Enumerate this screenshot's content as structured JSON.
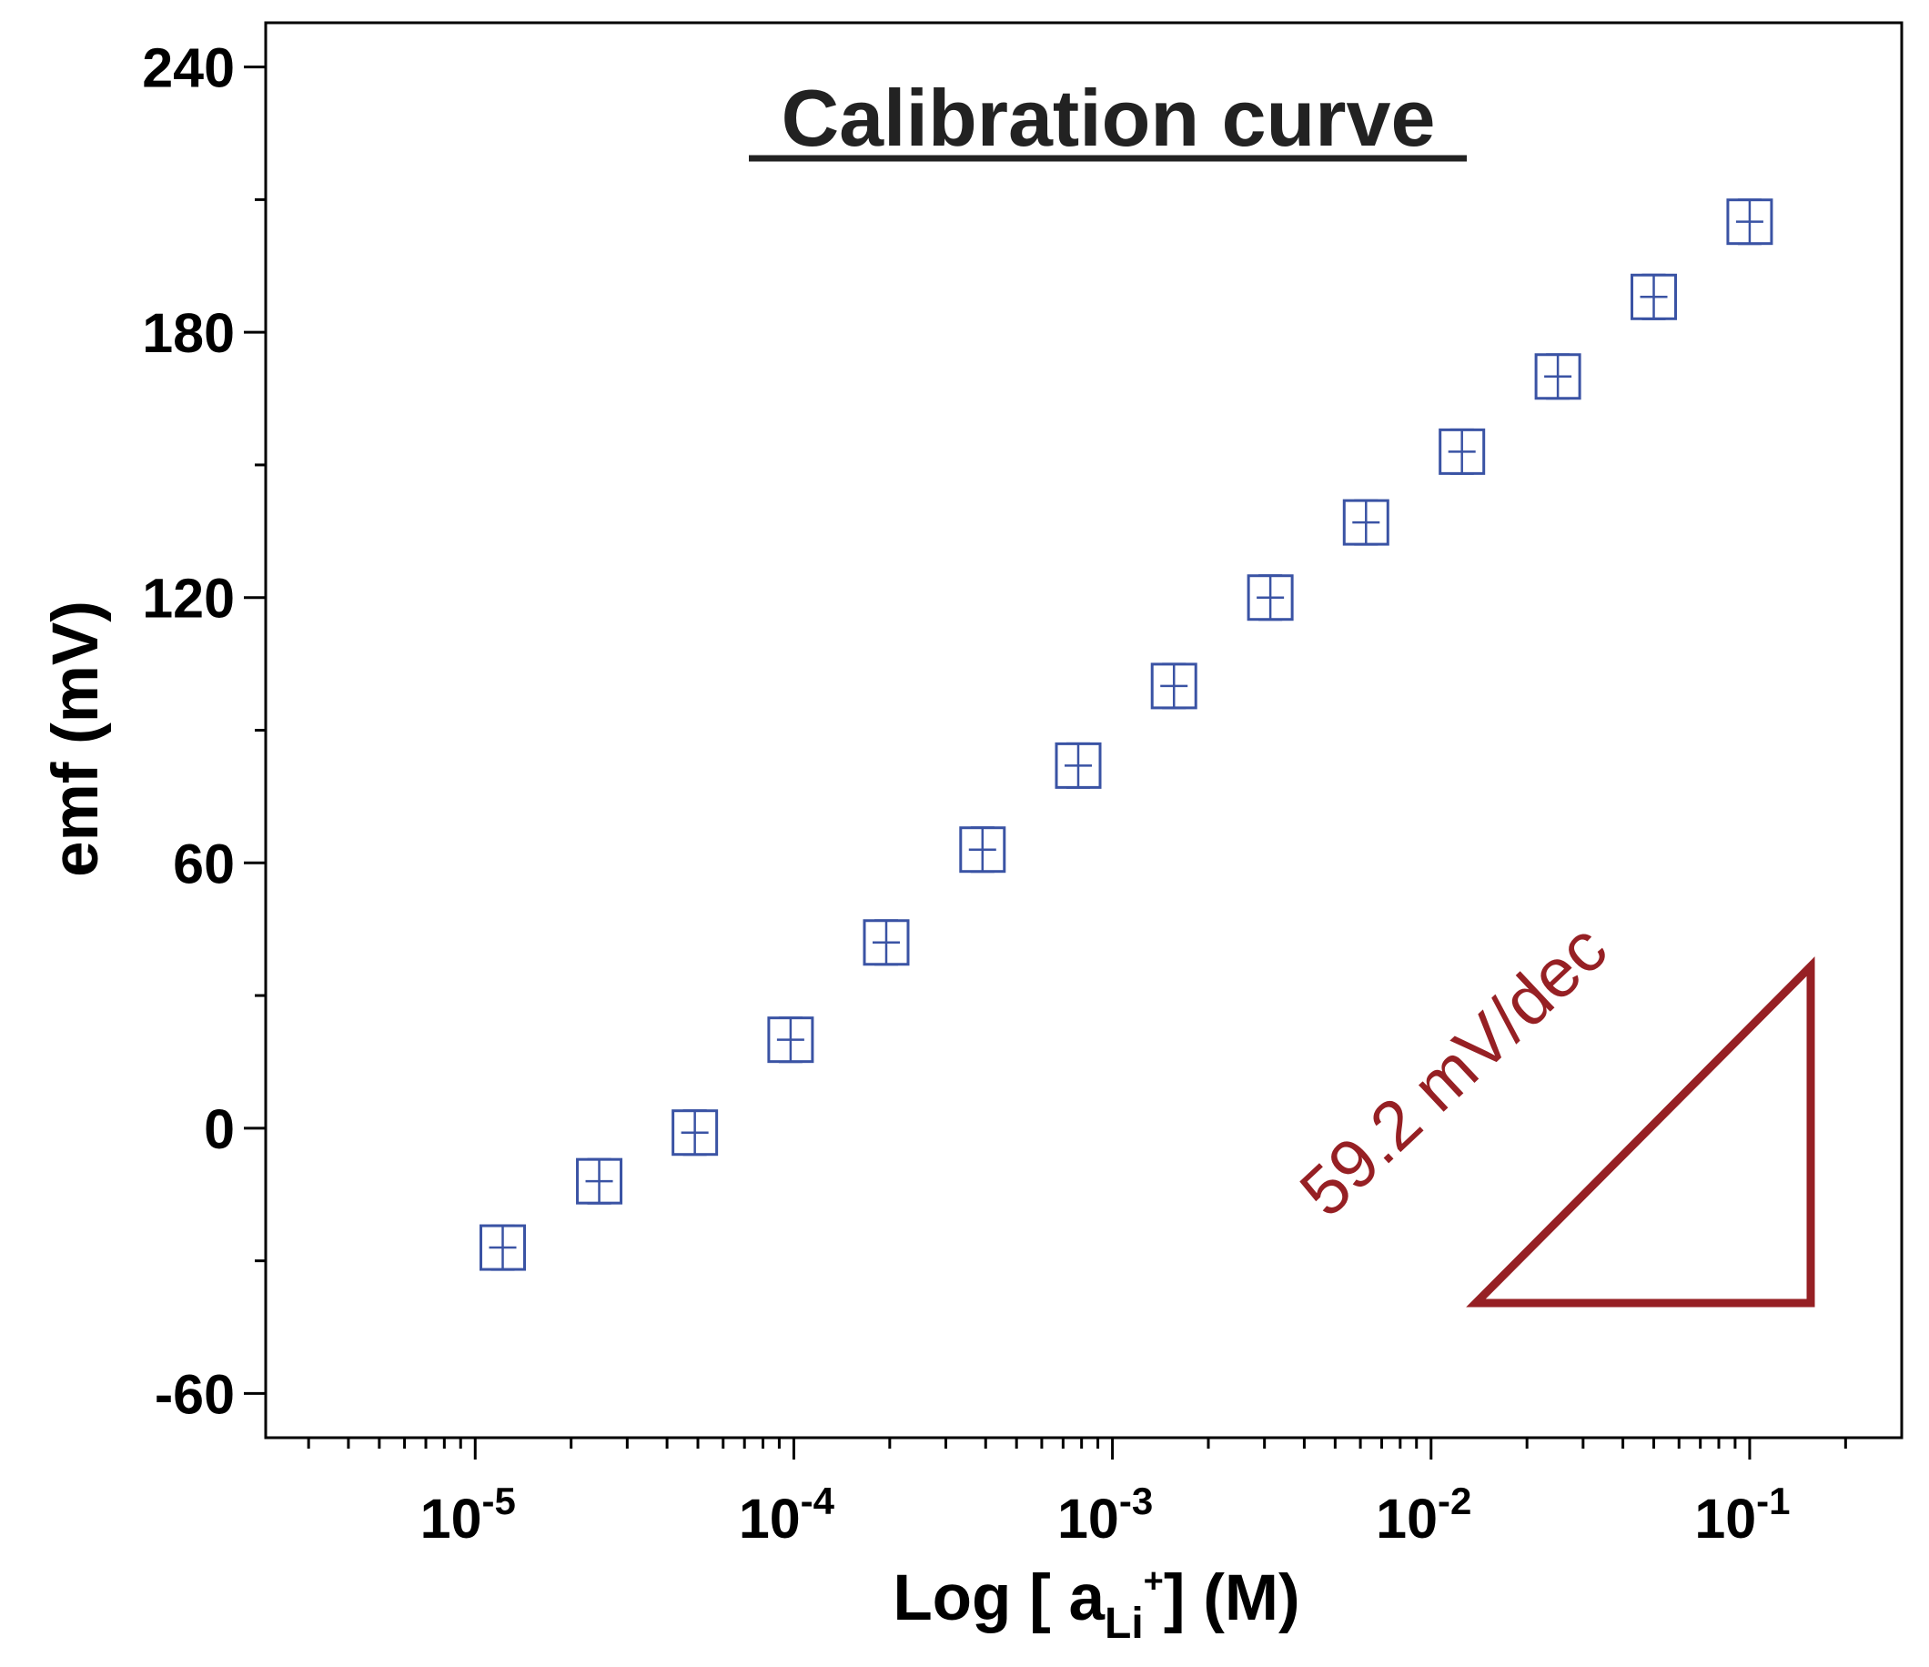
{
  "chart_data": {
    "type": "scatter",
    "title": "Calibration curve",
    "xlabel": {
      "prefix": "Log [ a",
      "sub": "Li",
      "sup": "+",
      "suffix": "] (M)"
    },
    "ylabel": "emf (mV)",
    "x_scale": "log",
    "xlim": [
      2.2e-06,
      0.3
    ],
    "ylim": [
      -70,
      250
    ],
    "grid": false,
    "legend": "none",
    "x_major_ticks": [
      {
        "value": 1e-05,
        "base": "10",
        "exp": "-5"
      },
      {
        "value": 0.0001,
        "base": "10",
        "exp": "-4"
      },
      {
        "value": 0.001,
        "base": "10",
        "exp": "-3"
      },
      {
        "value": 0.01,
        "base": "10",
        "exp": "-2"
      },
      {
        "value": 0.1,
        "base": "10",
        "exp": "-1"
      }
    ],
    "y_ticks": [
      "240",
      "180",
      "120",
      "60",
      "0",
      "-60"
    ],
    "series": [
      {
        "marker": "box-with-whiskers",
        "color": "#3a53a4",
        "points": [
          {
            "x": 1.22e-05,
            "y": -27,
            "err": 5
          },
          {
            "x": 2.45e-05,
            "y": -12,
            "err": 5
          },
          {
            "x": 4.89e-05,
            "y": -1,
            "err": 5
          },
          {
            "x": 9.77e-05,
            "y": 20,
            "err": 5
          },
          {
            "x": 0.000195,
            "y": 42,
            "err": 5
          },
          {
            "x": 0.000391,
            "y": 63,
            "err": 5
          },
          {
            "x": 0.000781,
            "y": 82,
            "err": 5
          },
          {
            "x": 0.00156,
            "y": 100,
            "err": 5
          },
          {
            "x": 0.00313,
            "y": 120,
            "err": 5
          },
          {
            "x": 0.00625,
            "y": 137,
            "err": 5
          },
          {
            "x": 0.0125,
            "y": 153,
            "err": 5
          },
          {
            "x": 0.025,
            "y": 170,
            "err": 5
          },
          {
            "x": 0.05,
            "y": 188,
            "err": 5
          },
          {
            "x": 0.1,
            "y": 205,
            "err": 5
          }
        ]
      }
    ],
    "annotation": {
      "text": "59.2 mV/dec",
      "color": "#962024",
      "shape": "right-triangle"
    }
  }
}
